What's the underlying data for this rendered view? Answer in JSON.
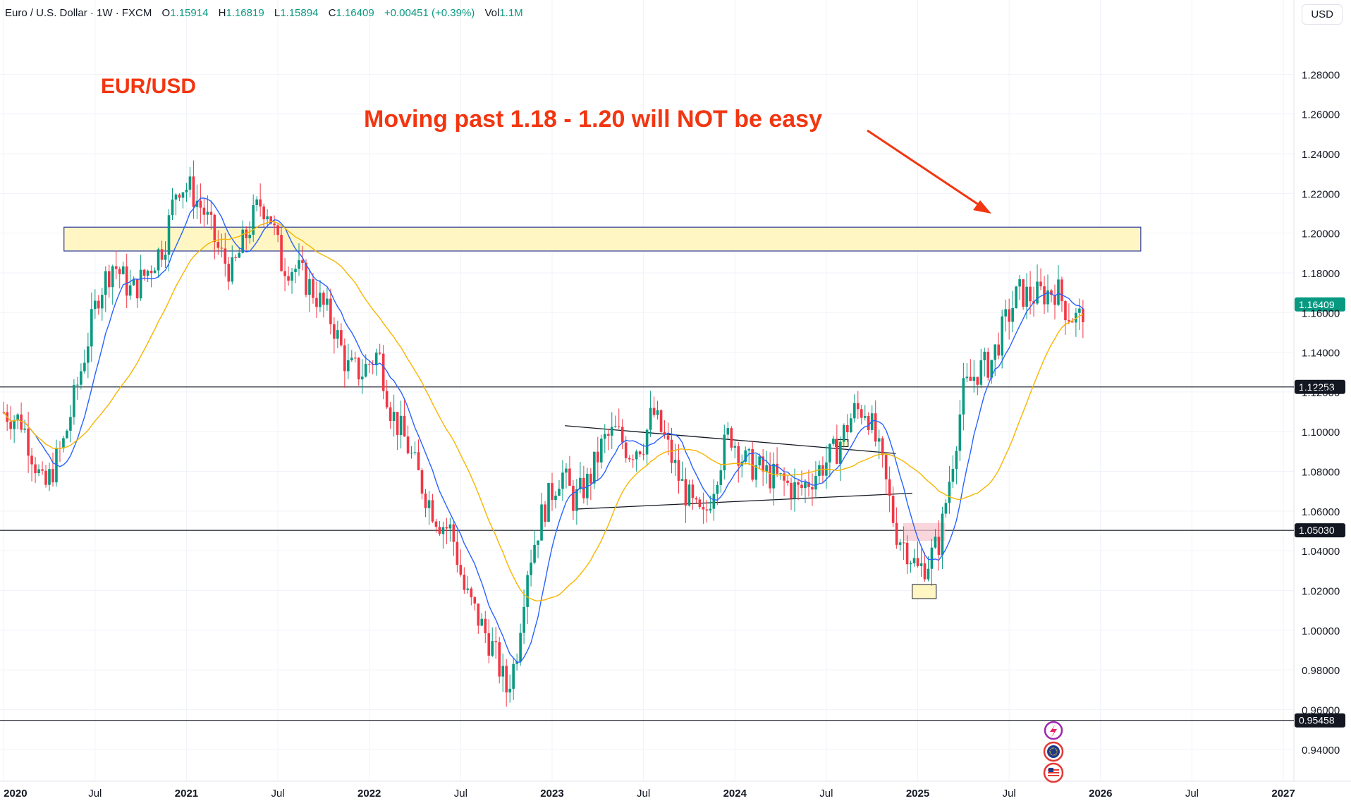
{
  "header": {
    "symbol": "Euro / U.S. Dollar · 1W · FXCM",
    "open_label": "O",
    "open": "1.15914",
    "high_label": "H",
    "high": "1.16819",
    "low_label": "L",
    "low": "1.15894",
    "close_label": "C",
    "close": "1.16409",
    "change": "+0.00451 (+0.39%)",
    "vol_label": "Vol",
    "vol": "1.1M",
    "currency": "USD"
  },
  "chart_data": {
    "type": "candlestick",
    "title": "EUR/USD",
    "annotation": "Moving past 1.18 - 1.20 will NOT be easy",
    "ylim": [
      0.925,
      1.305
    ],
    "y_ticks": [
      "1.28000",
      "1.26000",
      "1.24000",
      "1.22000",
      "1.20000",
      "1.18000",
      "1.16000",
      "1.14000",
      "1.12000",
      "1.10000",
      "1.08000",
      "1.06000",
      "1.04000",
      "1.02000",
      "1.00000",
      "0.98000",
      "0.96000",
      "0.94000"
    ],
    "x_ticks": [
      "2020",
      "Jul",
      "2021",
      "Jul",
      "2022",
      "Jul",
      "2023",
      "Jul",
      "2024",
      "Jul",
      "2025",
      "Jul",
      "2026",
      "Jul",
      "2027"
    ],
    "x_tick_times": [
      2020.0,
      2020.5,
      2021.0,
      2021.5,
      2022.0,
      2022.5,
      2023.0,
      2023.5,
      2024.0,
      2024.5,
      2025.0,
      2025.5,
      2026.0,
      2026.5,
      2027.0
    ],
    "xlim": [
      2019.98,
      2027.37
    ],
    "horizontal_levels": [
      {
        "value": 1.12253,
        "label": "1.12253"
      },
      {
        "value": 1.0503,
        "label": "1.05030"
      },
      {
        "value": 0.95458,
        "label": "0.95458"
      }
    ],
    "last_price": {
      "value": 1.16409,
      "label": "1.16409"
    },
    "resistance_zone": {
      "from": 1.191,
      "to": 1.203,
      "t_start": 2020.33,
      "t_end": 2026.22
    },
    "price_path": [
      [
        2020.0,
        1.11
      ],
      [
        2020.1,
        1.105
      ],
      [
        2020.17,
        1.085
      ],
      [
        2020.22,
        1.07
      ],
      [
        2020.33,
        1.095
      ],
      [
        2020.42,
        1.13
      ],
      [
        2020.52,
        1.17
      ],
      [
        2020.6,
        1.185
      ],
      [
        2020.7,
        1.17
      ],
      [
        2020.78,
        1.18
      ],
      [
        2020.88,
        1.195
      ],
      [
        2020.95,
        1.225
      ],
      [
        2021.02,
        1.222
      ],
      [
        2021.1,
        1.21
      ],
      [
        2021.18,
        1.19
      ],
      [
        2021.25,
        1.18
      ],
      [
        2021.33,
        1.2
      ],
      [
        2021.4,
        1.215
      ],
      [
        2021.45,
        1.212
      ],
      [
        2021.52,
        1.185
      ],
      [
        2021.6,
        1.182
      ],
      [
        2021.7,
        1.17
      ],
      [
        2021.8,
        1.155
      ],
      [
        2021.88,
        1.132
      ],
      [
        2021.96,
        1.13
      ],
      [
        2022.05,
        1.14
      ],
      [
        2022.12,
        1.11
      ],
      [
        2022.2,
        1.095
      ],
      [
        2022.3,
        1.07
      ],
      [
        2022.38,
        1.055
      ],
      [
        2022.45,
        1.05
      ],
      [
        2022.52,
        1.02
      ],
      [
        2022.6,
        1.005
      ],
      [
        2022.68,
        0.99
      ],
      [
        2022.75,
        0.97
      ],
      [
        2022.8,
        0.985
      ],
      [
        2022.86,
        1.03
      ],
      [
        2022.95,
        1.06
      ],
      [
        2023.05,
        1.08
      ],
      [
        2023.12,
        1.065
      ],
      [
        2023.2,
        1.075
      ],
      [
        2023.28,
        1.095
      ],
      [
        2023.35,
        1.1
      ],
      [
        2023.42,
        1.09
      ],
      [
        2023.5,
        1.095
      ],
      [
        2023.55,
        1.11
      ],
      [
        2023.62,
        1.095
      ],
      [
        2023.7,
        1.075
      ],
      [
        2023.78,
        1.06
      ],
      [
        2023.83,
        1.055
      ],
      [
        2023.9,
        1.08
      ],
      [
        2023.97,
        1.1
      ],
      [
        2024.05,
        1.085
      ],
      [
        2024.15,
        1.08
      ],
      [
        2024.25,
        1.075
      ],
      [
        2024.35,
        1.07
      ],
      [
        2024.45,
        1.08
      ],
      [
        2024.55,
        1.09
      ],
      [
        2024.65,
        1.11
      ],
      [
        2024.72,
        1.112
      ],
      [
        2024.8,
        1.085
      ],
      [
        2024.88,
        1.05
      ],
      [
        2024.95,
        1.04
      ],
      [
        2025.0,
        1.03
      ],
      [
        2025.06,
        1.035
      ],
      [
        2025.12,
        1.045
      ],
      [
        2025.18,
        1.08
      ],
      [
        2025.25,
        1.12
      ],
      [
        2025.32,
        1.13
      ],
      [
        2025.4,
        1.135
      ],
      [
        2025.48,
        1.155
      ],
      [
        2025.55,
        1.17
      ],
      [
        2025.62,
        1.168
      ],
      [
        2025.7,
        1.17
      ],
      [
        2025.76,
        1.172
      ],
      [
        2025.82,
        1.16
      ],
      [
        2025.88,
        1.156
      ],
      [
        2025.915,
        1.164
      ]
    ]
  }
}
